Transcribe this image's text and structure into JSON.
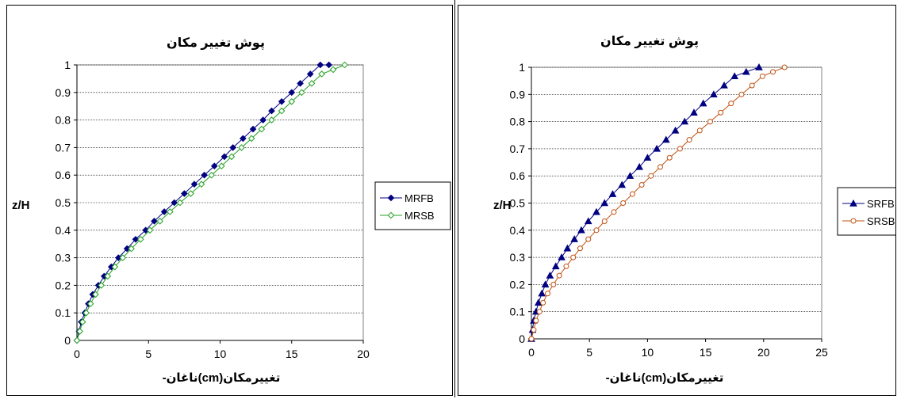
{
  "chart_data": [
    {
      "type": "line",
      "title": "پوش تغییر مکان",
      "xlabel": "تغییرمکان(cm)ناغان-",
      "ylabel": "z/H",
      "xlim": [
        0,
        20
      ],
      "ylim": [
        0,
        1
      ],
      "xticks": [
        0,
        5,
        10,
        15,
        20
      ],
      "yticks": [
        0,
        0.1,
        0.2,
        0.3,
        0.4,
        0.5,
        0.6,
        0.7,
        0.8,
        0.9,
        1
      ],
      "grid": "horizontal",
      "legend_position": "right",
      "series": [
        {
          "name": "MRFB",
          "color": "#000080",
          "marker": "diamond-filled",
          "x": [
            0,
            0.15,
            0.3,
            0.55,
            0.8,
            1.1,
            1.5,
            1.9,
            2.4,
            2.9,
            3.5,
            4.1,
            4.8,
            5.4,
            6.1,
            6.8,
            7.5,
            8.2,
            8.9,
            9.6,
            10.3,
            10.9,
            11.6,
            12.3,
            13.0,
            13.6,
            14.3,
            15.0,
            15.6,
            16.3,
            17.0,
            17.6
          ],
          "y": [
            0,
            0.033,
            0.067,
            0.1,
            0.133,
            0.167,
            0.2,
            0.233,
            0.267,
            0.3,
            0.333,
            0.367,
            0.4,
            0.433,
            0.467,
            0.5,
            0.533,
            0.567,
            0.6,
            0.633,
            0.667,
            0.7,
            0.733,
            0.767,
            0.8,
            0.833,
            0.867,
            0.9,
            0.933,
            0.967,
            1.0,
            1.0
          ]
        },
        {
          "name": "MRSB",
          "color": "#20a020",
          "marker": "diamond-open",
          "x": [
            0,
            0.2,
            0.4,
            0.65,
            0.95,
            1.3,
            1.7,
            2.15,
            2.65,
            3.2,
            3.8,
            4.45,
            5.1,
            5.8,
            6.5,
            7.2,
            7.95,
            8.7,
            9.4,
            10.1,
            10.8,
            11.5,
            12.2,
            12.9,
            13.6,
            14.3,
            15.0,
            15.7,
            16.4,
            17.1,
            17.9,
            18.7
          ],
          "y": [
            0,
            0.033,
            0.067,
            0.1,
            0.133,
            0.167,
            0.2,
            0.233,
            0.267,
            0.3,
            0.333,
            0.367,
            0.4,
            0.433,
            0.467,
            0.5,
            0.533,
            0.567,
            0.6,
            0.633,
            0.667,
            0.7,
            0.733,
            0.767,
            0.8,
            0.833,
            0.867,
            0.9,
            0.933,
            0.967,
            0.983,
            1.0
          ]
        }
      ]
    },
    {
      "type": "line",
      "title": "پوش تغییر مکان",
      "xlabel": "تغییرمکان(cm)ناغان-",
      "ylabel": "z/H",
      "xlim": [
        0,
        25
      ],
      "ylim": [
        0,
        1
      ],
      "xticks": [
        0,
        5,
        10,
        15,
        20,
        25
      ],
      "yticks": [
        0,
        0.1,
        0.2,
        0.3,
        0.4,
        0.5,
        0.6,
        0.7,
        0.8,
        0.9,
        1
      ],
      "grid": "horizontal",
      "legend_position": "right",
      "series": [
        {
          "name": "SRFB",
          "color": "#000080",
          "marker": "triangle-filled",
          "x": [
            0,
            0.1,
            0.2,
            0.4,
            0.6,
            0.9,
            1.2,
            1.6,
            2.1,
            2.6,
            3.1,
            3.7,
            4.3,
            4.9,
            5.6,
            6.3,
            7.0,
            7.8,
            8.5,
            9.3,
            10.0,
            10.8,
            11.6,
            12.4,
            13.2,
            14.0,
            14.8,
            15.7,
            16.6,
            17.5,
            18.5,
            19.6
          ],
          "y": [
            0,
            0.033,
            0.067,
            0.1,
            0.133,
            0.167,
            0.2,
            0.233,
            0.267,
            0.3,
            0.333,
            0.367,
            0.4,
            0.433,
            0.467,
            0.5,
            0.533,
            0.567,
            0.6,
            0.633,
            0.667,
            0.7,
            0.733,
            0.767,
            0.8,
            0.833,
            0.867,
            0.9,
            0.933,
            0.967,
            0.983,
            1.0
          ]
        },
        {
          "name": "SRSB",
          "color": "#c05010",
          "marker": "circle-open",
          "x": [
            0,
            0.2,
            0.4,
            0.7,
            1.0,
            1.4,
            1.9,
            2.4,
            3.0,
            3.6,
            4.2,
            4.9,
            5.6,
            6.3,
            7.1,
            7.9,
            8.7,
            9.5,
            10.3,
            11.1,
            11.9,
            12.8,
            13.6,
            14.5,
            15.4,
            16.3,
            17.2,
            18.1,
            19.0,
            19.9,
            20.8,
            21.8
          ],
          "y": [
            0,
            0.033,
            0.067,
            0.1,
            0.133,
            0.167,
            0.2,
            0.233,
            0.267,
            0.3,
            0.333,
            0.367,
            0.4,
            0.433,
            0.467,
            0.5,
            0.533,
            0.567,
            0.6,
            0.633,
            0.667,
            0.7,
            0.733,
            0.767,
            0.8,
            0.833,
            0.867,
            0.9,
            0.933,
            0.967,
            0.983,
            1.0
          ]
        }
      ]
    }
  ]
}
